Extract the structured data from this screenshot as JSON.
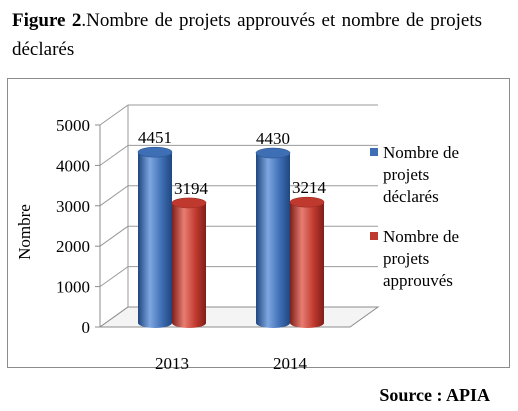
{
  "caption": {
    "label": "Figure 2",
    "text": ".Nombre de projets approuvés et nombre de projets déclarés"
  },
  "source": "Source : APIA",
  "chart_data": {
    "type": "bar",
    "categories": [
      "2013",
      "2014"
    ],
    "series": [
      {
        "name": "Nombre de projets déclarés",
        "values": [
          4451,
          4430
        ],
        "color": "#3e6eb4"
      },
      {
        "name": "Nombre de projets approuvés",
        "values": [
          3194,
          3214
        ],
        "color": "#c0392e"
      }
    ],
    "ylabel": "Nombre",
    "xlabel": "",
    "ylim": [
      0,
      5000
    ],
    "yticks": [
      0,
      1000,
      2000,
      3000,
      4000,
      5000
    ],
    "legend_position": "right",
    "style": "3d-cylinder"
  }
}
